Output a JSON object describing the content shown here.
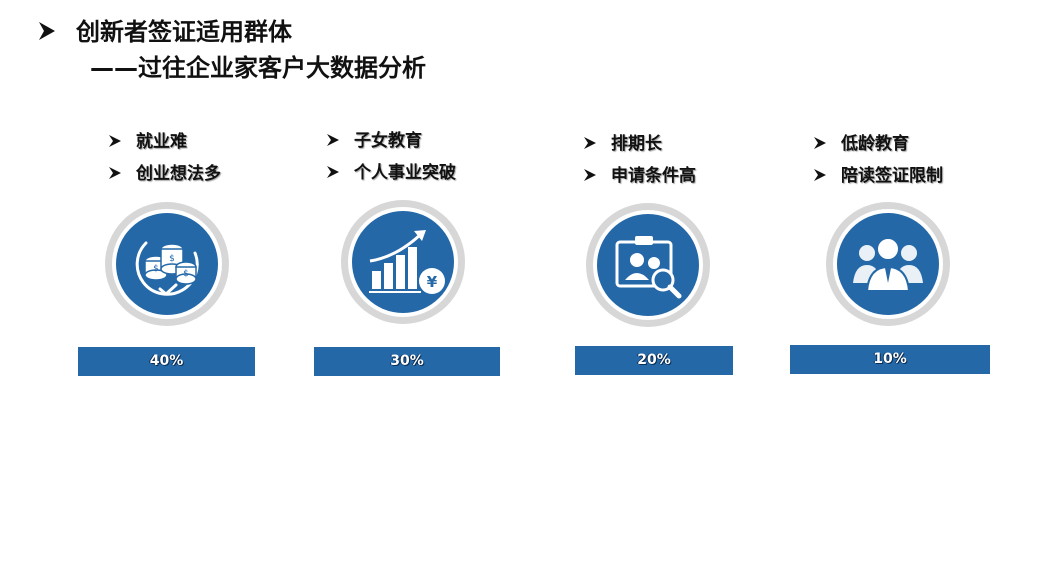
{
  "header": {
    "title": "创新者签证适用群体",
    "subtitle": "——过往企业家客户大数据分析"
  },
  "colors": {
    "accent": "#2468a8",
    "ring": "#d7d7d7"
  },
  "groups": [
    {
      "bullets": [
        "就业难",
        "创业想法多"
      ],
      "icon": "coins-icon",
      "value": "40%"
    },
    {
      "bullets": [
        "子女教育",
        "个人事业突破"
      ],
      "icon": "growth-chart-icon",
      "value": "30%"
    },
    {
      "bullets": [
        "排期长",
        "申请条件高"
      ],
      "icon": "id-card-search-icon",
      "value": "20%"
    },
    {
      "bullets": [
        "低龄教育",
        "陪读签证限制"
      ],
      "icon": "people-group-icon",
      "value": "10%"
    }
  ]
}
